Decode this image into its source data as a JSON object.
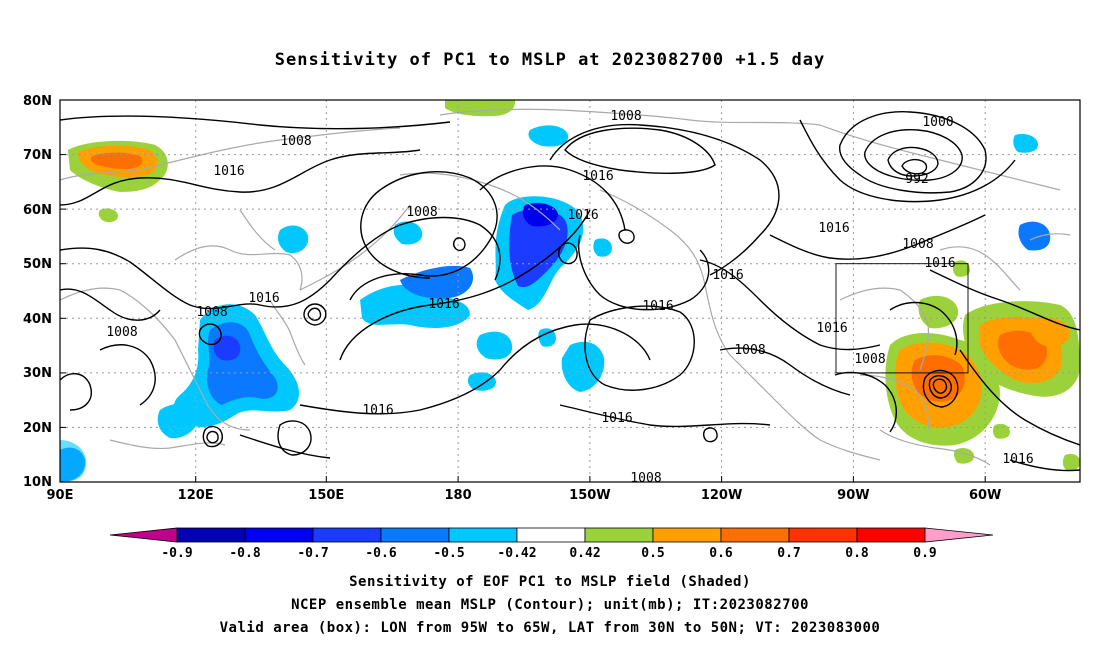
{
  "title": "Sensitivity of PC1 to MSLP at 2023082700 +1.5 day",
  "map": {
    "lat_labels": [
      "80N",
      "70N",
      "60N",
      "50N",
      "40N",
      "30N",
      "20N",
      "10N"
    ],
    "lon_labels": [
      "90E",
      "120E",
      "150E",
      "180",
      "150W",
      "120W",
      "90W",
      "60W"
    ],
    "valid_box": {
      "lon_from": "95W",
      "lon_to": "65W",
      "lat_from": "30N",
      "lat_to": "50N"
    },
    "contour_labels": [
      "1008",
      "1016",
      "1008",
      "1008",
      "1016",
      "1016",
      "1008",
      "1016",
      "1008",
      "1016",
      "1016",
      "1016",
      "1016",
      "1008",
      "1016",
      "1016",
      "1008",
      "1000",
      "992",
      "1016",
      "1008",
      "1016",
      "1008",
      "1016"
    ],
    "colors": {
      "contour": "#000000",
      "coastline": "#a9a9a9",
      "grid": "#9a9a9a"
    }
  },
  "colorbar": {
    "labels": [
      "-0.9",
      "-0.8",
      "-0.7",
      "-0.6",
      "-0.5",
      "-0.42",
      "0.42",
      "0.5",
      "0.6",
      "0.7",
      "0.8",
      "0.9"
    ],
    "colors": [
      "#c0008a",
      "#0000b4",
      "#0000f0",
      "#1b3cff",
      "#0a78ff",
      "#00c8ff",
      "#ffffff",
      "#9bd23c",
      "#ffa000",
      "#ff6e00",
      "#ff3200",
      "#ff0000",
      "#ff9ec8"
    ]
  },
  "captions": [
    "Sensitivity of EOF PC1 to MSLP field (Shaded)",
    "NCEP ensemble mean MSLP (Contour); unit(mb); IT:2023082700",
    "Valid area (box): LON from 95W to 65W, LAT from 30N to 50N; VT: 2023083000"
  ]
}
